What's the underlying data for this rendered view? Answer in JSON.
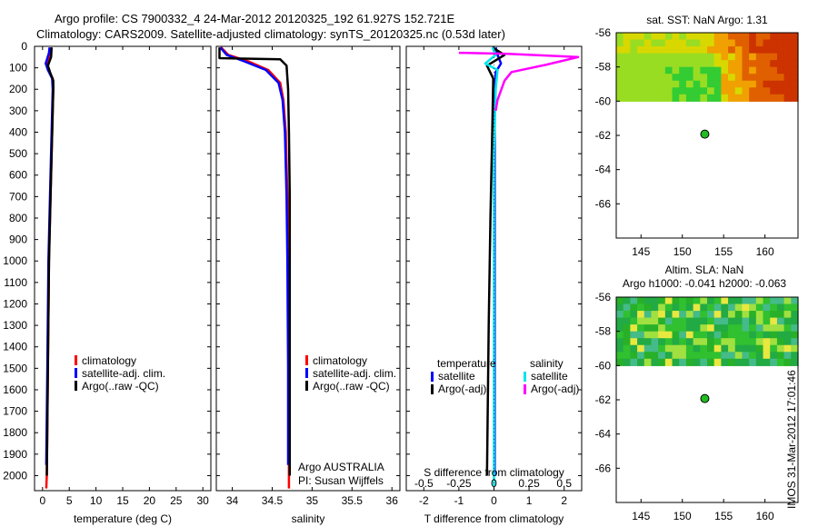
{
  "header": {
    "line1": "Argo profile: CS 7900332_4 24-Mar-2012 20120325_192 61.927S 152.721E",
    "line2": "Climatology: CARS2009. Satellite-adjusted climatology: synTS_20120325.nc (0.53d later)"
  },
  "stamp": "IMOS 31-Mar-2012 17:01:46",
  "colors": {
    "red": "#ff0000",
    "blue": "#0000ff",
    "black": "#000000",
    "cyan": "#00e5ee",
    "magenta": "#ff00ff"
  },
  "chart_data": [
    {
      "type": "line",
      "name": "temperature-profile",
      "xlabel": "temperature (deg C)",
      "ylabel": "",
      "xlim": [
        -1.5,
        31.5
      ],
      "ylim": [
        2070,
        0
      ],
      "xticks": [
        "0",
        "5",
        "10",
        "15",
        "20",
        "25",
        "30"
      ],
      "xtick_values": [
        0,
        5,
        10,
        15,
        20,
        25,
        30
      ],
      "yticks": [
        "0",
        "100",
        "200",
        "300",
        "400",
        "500",
        "600",
        "700",
        "800",
        "900",
        "1000",
        "1100",
        "1200",
        "1300",
        "1400",
        "1500",
        "1600",
        "1700",
        "1800",
        "1900",
        "2000"
      ],
      "ytick_values": [
        0,
        100,
        200,
        300,
        400,
        500,
        600,
        700,
        800,
        900,
        1000,
        1100,
        1200,
        1300,
        1400,
        1500,
        1600,
        1700,
        1800,
        1900,
        2000
      ],
      "legend": [
        "climatology",
        "satellite-adj. clim.",
        "Argo(..raw -QC)"
      ],
      "series": [
        {
          "name": "climatology",
          "color": "red",
          "points": [
            [
              1.6,
              5
            ],
            [
              1.5,
              30
            ],
            [
              0.9,
              80
            ],
            [
              1.1,
              110
            ],
            [
              1.9,
              150
            ],
            [
              2.0,
              200
            ],
            [
              1.8,
              400
            ],
            [
              1.5,
              700
            ],
            [
              1.2,
              1000
            ],
            [
              1.0,
              1500
            ],
            [
              0.8,
              2000
            ],
            [
              0.7,
              2060
            ]
          ]
        },
        {
          "name": "satellite-adj. clim.",
          "color": "blue",
          "points": [
            [
              1.3,
              5
            ],
            [
              1.2,
              30
            ],
            [
              0.6,
              80
            ],
            [
              1.0,
              110
            ],
            [
              1.8,
              150
            ],
            [
              1.9,
              200
            ],
            [
              1.7,
              400
            ],
            [
              1.4,
              700
            ],
            [
              1.1,
              1000
            ],
            [
              0.9,
              1500
            ],
            [
              0.7,
              1950
            ]
          ]
        },
        {
          "name": "Argo(..raw -QC)",
          "color": "black",
          "points": [
            [
              1.7,
              5
            ],
            [
              1.6,
              50
            ],
            [
              1.0,
              90
            ],
            [
              1.4,
              120
            ],
            [
              2.0,
              160
            ],
            [
              2.0,
              200
            ],
            [
              1.8,
              400
            ],
            [
              1.5,
              700
            ],
            [
              1.2,
              1000
            ],
            [
              1.0,
              1500
            ],
            [
              0.8,
              2000
            ]
          ]
        }
      ]
    },
    {
      "type": "line",
      "name": "salinity-profile",
      "xlabel": "salinity",
      "ylabel": "",
      "xlim": [
        33.8,
        36.1
      ],
      "ylim": [
        2070,
        0
      ],
      "xticks": [
        "34",
        "34.5",
        "35",
        "35.5",
        "36"
      ],
      "xtick_values": [
        34,
        34.5,
        35,
        35.5,
        36
      ],
      "legend": [
        "climatology",
        "satellite-adj. clim.",
        "Argo(..raw -QC)"
      ],
      "annotation": [
        "Argo AUSTRALIA",
        "PI: Susan Wijffels"
      ],
      "series": [
        {
          "name": "climatology",
          "color": "red",
          "points": [
            [
              33.86,
              5
            ],
            [
              33.95,
              40
            ],
            [
              34.2,
              70
            ],
            [
              34.45,
              110
            ],
            [
              34.6,
              170
            ],
            [
              34.64,
              250
            ],
            [
              34.67,
              400
            ],
            [
              34.69,
              700
            ],
            [
              34.7,
              1000
            ],
            [
              34.71,
              1500
            ],
            [
              34.71,
              2000
            ],
            [
              34.71,
              2060
            ]
          ]
        },
        {
          "name": "satellite-adj. clim.",
          "color": "blue",
          "points": [
            [
              33.85,
              5
            ],
            [
              33.93,
              40
            ],
            [
              34.15,
              70
            ],
            [
              34.42,
              110
            ],
            [
              34.58,
              170
            ],
            [
              34.63,
              250
            ],
            [
              34.66,
              400
            ],
            [
              34.68,
              700
            ],
            [
              34.69,
              1000
            ],
            [
              34.7,
              1500
            ],
            [
              34.7,
              1950
            ]
          ]
        },
        {
          "name": "Argo(..raw -QC)",
          "color": "black",
          "points": [
            [
              33.84,
              5
            ],
            [
              33.84,
              55
            ],
            [
              34.6,
              60
            ],
            [
              34.68,
              90
            ],
            [
              34.7,
              200
            ],
            [
              34.71,
              400
            ],
            [
              34.72,
              700
            ],
            [
              34.72,
              1000
            ],
            [
              34.72,
              1500
            ],
            [
              34.72,
              2000
            ]
          ]
        }
      ]
    },
    {
      "type": "line",
      "name": "difference-profile",
      "xlabel": "T difference from climatology",
      "xlabel_top": "S difference from climatology",
      "xlim": [
        -2.5,
        2.5
      ],
      "ylim": [
        2070,
        0
      ],
      "xticks": [
        "-2",
        "-1",
        "0",
        "1",
        "2"
      ],
      "xtick_values": [
        -2,
        -1,
        0,
        1,
        2
      ],
      "xticks_top": [
        "-0.5",
        "-0.25",
        "0",
        "0.25",
        "0.5"
      ],
      "xtick_top_values": [
        -2,
        -1,
        0,
        1,
        2
      ],
      "legend_titles": [
        "temperature",
        "salinity"
      ],
      "legend": [
        "satellite",
        "Argo(-adj)",
        "satellite",
        "Argo(-adj)"
      ],
      "series": [
        {
          "name": "temperature satellite",
          "color": "blue",
          "points": [
            [
              0.05,
              5
            ],
            [
              0.1,
              40
            ],
            [
              0.2,
              80
            ],
            [
              0.05,
              120
            ],
            [
              0.02,
              300
            ],
            [
              0.02,
              1000
            ],
            [
              0.02,
              2000
            ]
          ]
        },
        {
          "name": "temperature Argo(-adj)",
          "color": "black",
          "points": [
            [
              -0.05,
              5
            ],
            [
              0.3,
              40
            ],
            [
              -0.2,
              90
            ],
            [
              -0.02,
              150
            ],
            [
              -0.05,
              400
            ],
            [
              -0.1,
              800
            ],
            [
              -0.15,
              1300
            ],
            [
              -0.2,
              2000
            ]
          ]
        },
        {
          "name": "salinity satellite",
          "color": "cyan",
          "points": [
            [
              -0.05,
              5
            ],
            [
              0.05,
              40
            ],
            [
              -0.25,
              80
            ],
            [
              0.1,
              110
            ],
            [
              0.05,
              200
            ],
            [
              0.0,
              500
            ],
            [
              0.0,
              1000
            ],
            [
              0.0,
              1500
            ],
            [
              0.0,
              2050
            ]
          ]
        },
        {
          "name": "salinity Argo(-adj)",
          "color": "magenta",
          "points": [
            [
              -1.0,
              30
            ],
            [
              0.4,
              35
            ],
            [
              2.4,
              50
            ],
            [
              1.5,
              85
            ],
            [
              0.5,
              120
            ],
            [
              0.3,
              160
            ],
            [
              0.1,
              250
            ],
            [
              0.05,
              300
            ]
          ]
        }
      ]
    },
    {
      "type": "heatmap",
      "name": "sst-map",
      "title": "sat. SST: NaN Argo: 1.31",
      "xlim": [
        142,
        164
      ],
      "ylim": [
        -68,
        -56
      ],
      "xticks": [
        "145",
        "150",
        "155",
        "160"
      ],
      "xtick_values": [
        145,
        150,
        155,
        160
      ],
      "yticks": [
        "-56",
        "-58",
        "-60",
        "-62",
        "-64",
        "-66"
      ],
      "ytick_values": [
        -56,
        -58,
        -60,
        -62,
        -64,
        -66
      ],
      "field_lat_range": [
        -60,
        -56
      ],
      "float_position": {
        "lon": 152.721,
        "lat": -61.927
      }
    },
    {
      "type": "heatmap",
      "name": "sla-map",
      "title": "Altim. SLA: NaN",
      "title2": "Argo h1000: -0.041 h2000: -0.063",
      "xlim": [
        142,
        164
      ],
      "ylim": [
        -68,
        -56
      ],
      "xticks": [
        "145",
        "150",
        "155",
        "160"
      ],
      "xtick_values": [
        145,
        150,
        155,
        160
      ],
      "yticks": [
        "-56",
        "-58",
        "-60",
        "-62",
        "-64",
        "-66"
      ],
      "ytick_values": [
        -56,
        -58,
        -60,
        -62,
        -64,
        -66
      ],
      "field_lat_range": [
        -60,
        -56
      ],
      "float_position": {
        "lon": 152.721,
        "lat": -61.927
      }
    }
  ]
}
